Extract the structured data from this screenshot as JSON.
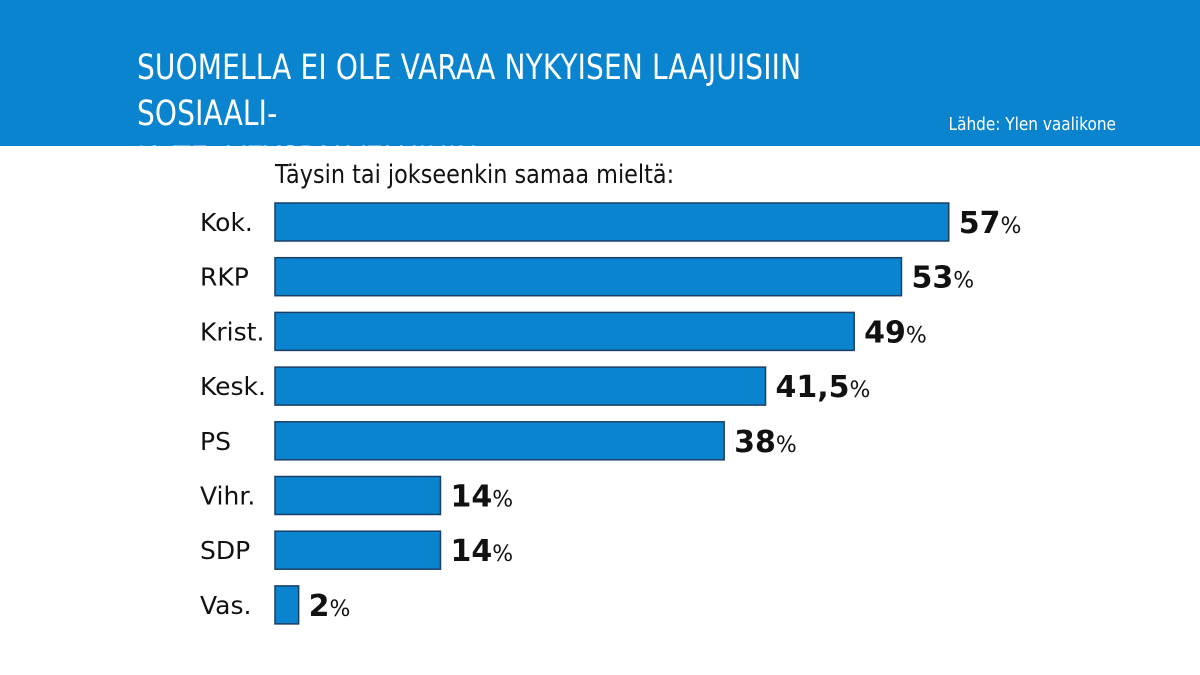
{
  "header": {
    "title_line1": "SUOMELLA EI OLE VARAA NYKYISEN LAAJUISIIN SOSIAALI-",
    "title_line2": "JA TERVEYSPALVELUIHIN",
    "source": "Lähde: Ylen vaalikone"
  },
  "colors": {
    "header_bg": "#0a84cf",
    "bar_fill": "#0a84cf",
    "bar_stroke": "#1a3f66"
  },
  "chart_data": {
    "type": "bar",
    "orientation": "horizontal",
    "title": "SUOMELLA EI OLE VARAA NYKYISEN LAAJUISIIN SOSIAALI- JA TERVEYSPALVELUIHIN",
    "subtitle": "Täysin tai jokseenkin samaa mieltä:",
    "categories": [
      "Kok.",
      "RKP",
      "Krist.",
      "Kesk.",
      "PS",
      "Vihr.",
      "SDP",
      "Vas."
    ],
    "values": [
      57,
      53,
      49,
      41.5,
      38,
      14,
      14,
      2
    ],
    "value_labels": [
      "57",
      "53",
      "49",
      "41,5",
      "38",
      "14",
      "14",
      "2"
    ],
    "unit": "%",
    "xlabel": "",
    "ylabel": "",
    "grid": false,
    "legend": "none"
  }
}
